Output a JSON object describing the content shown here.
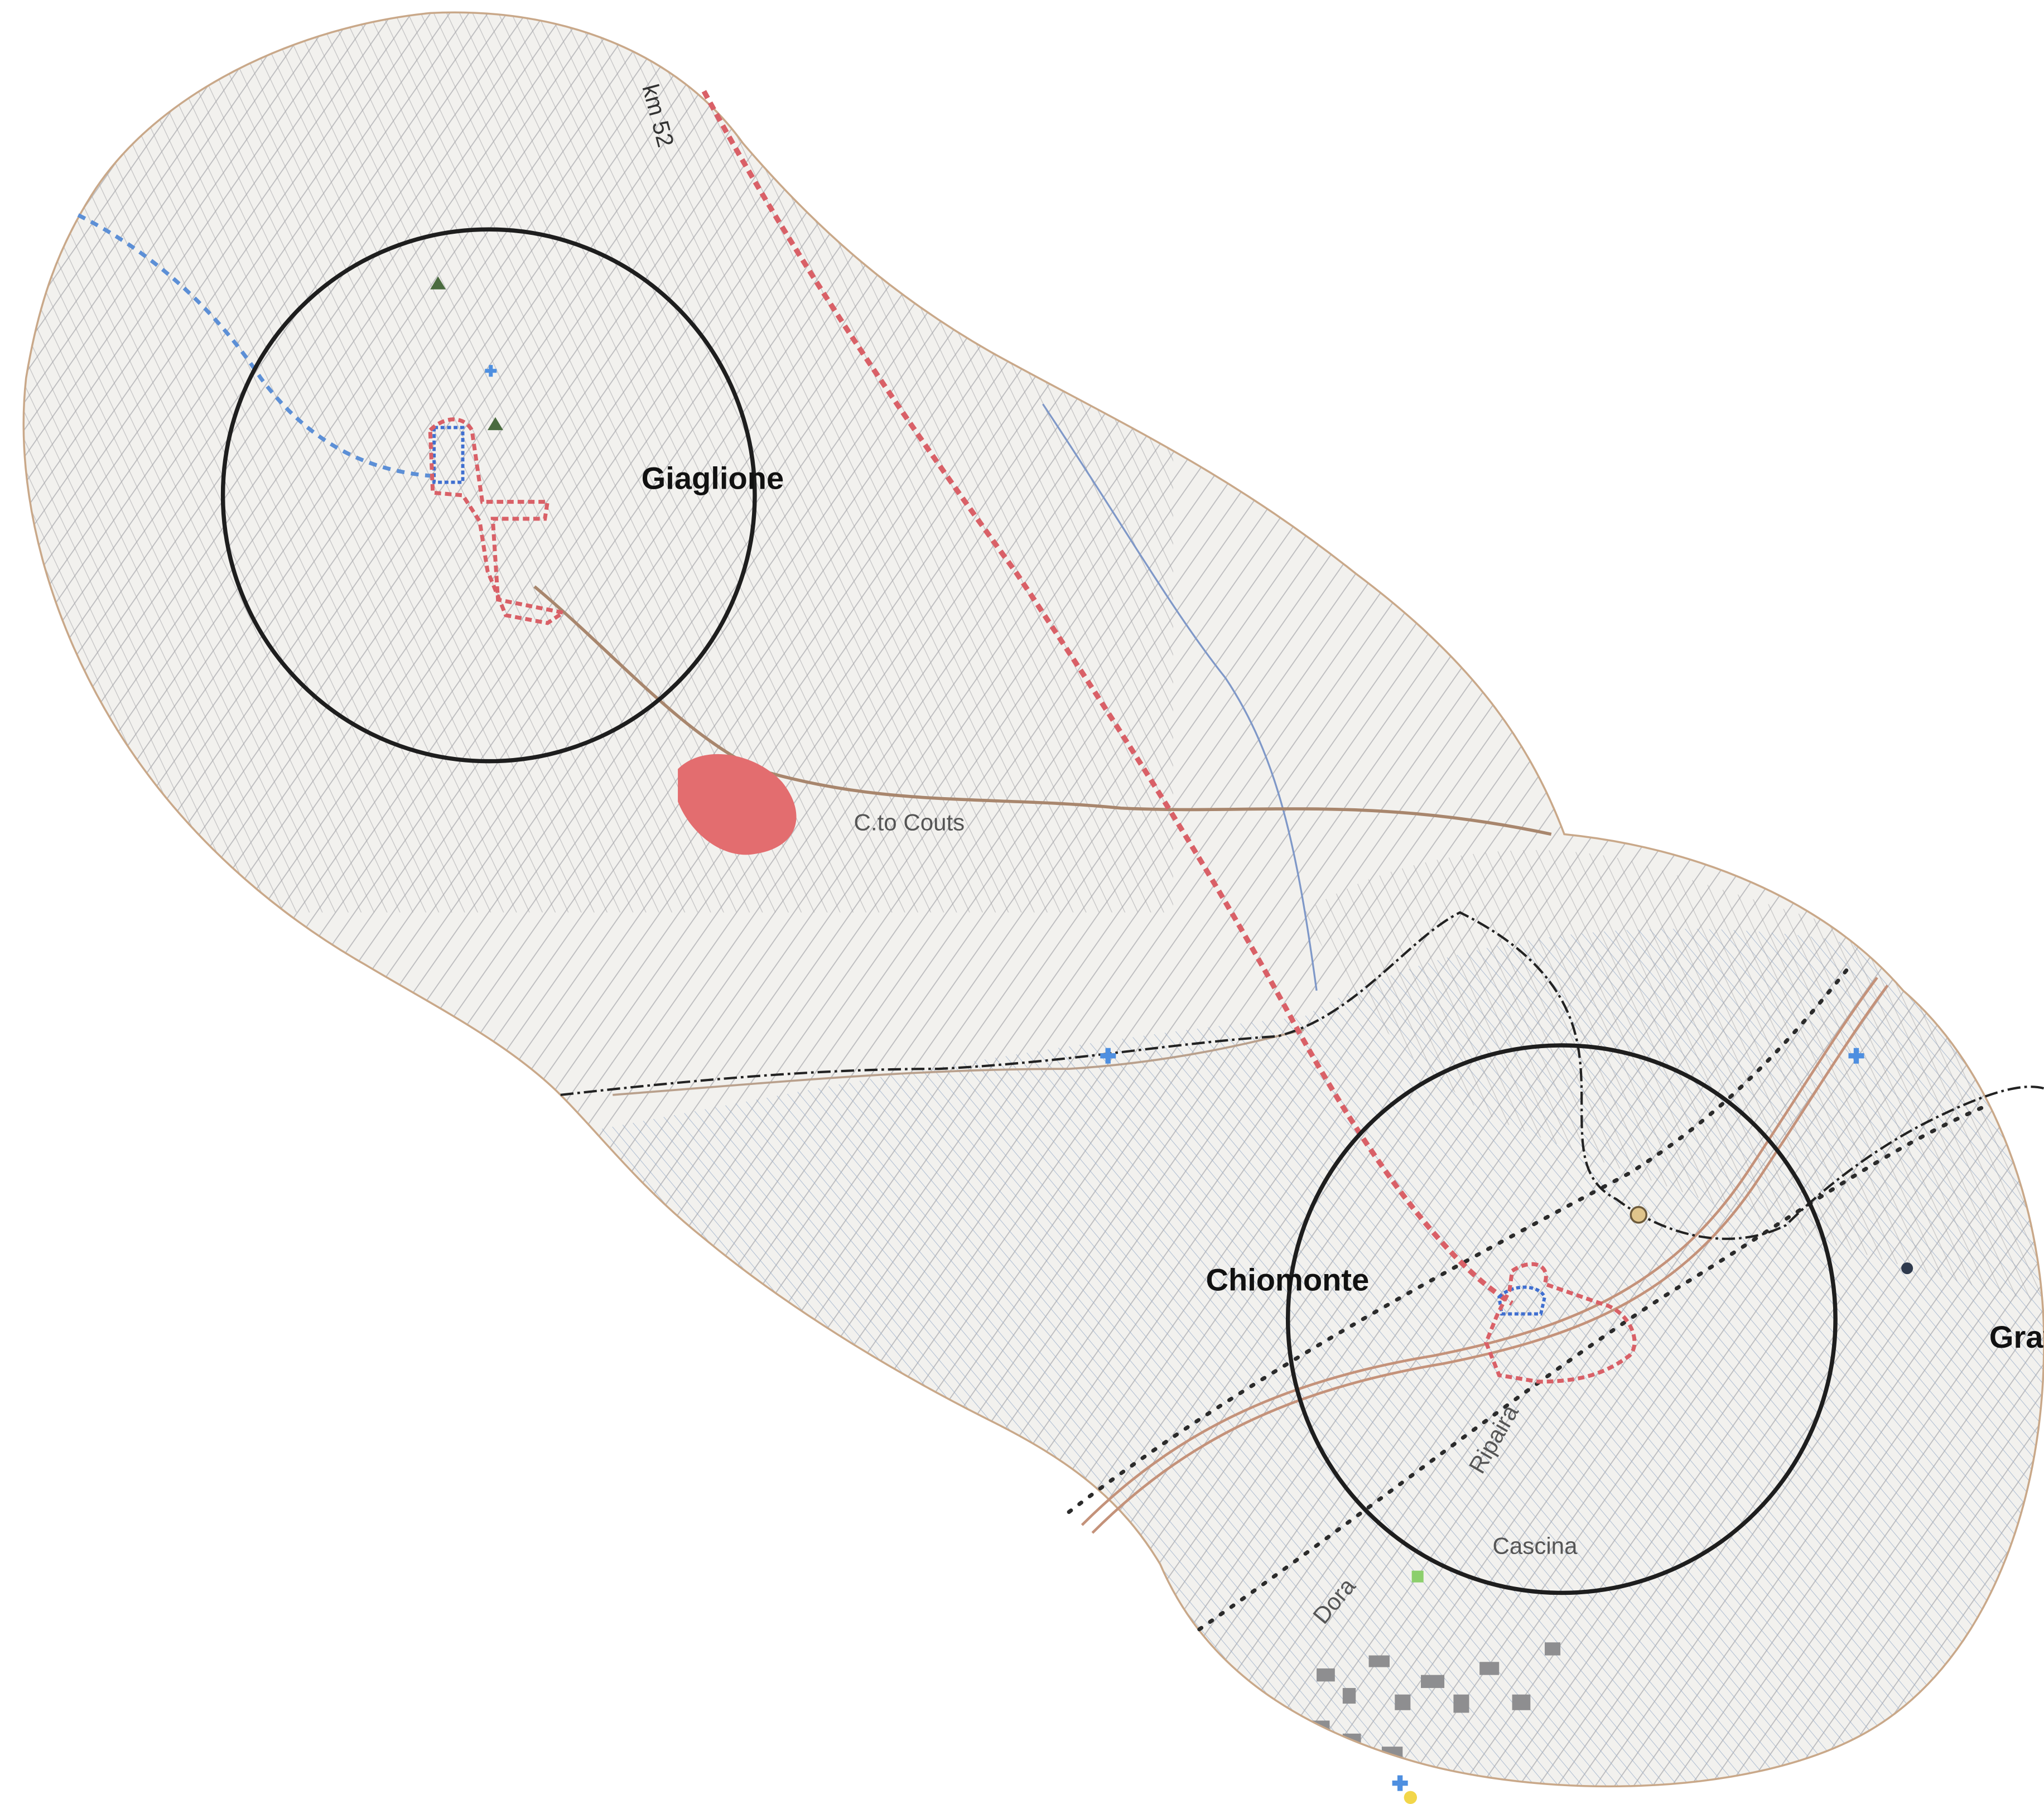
{
  "labels": {
    "giaglione": "Giaglione",
    "chiomonte": "Chiomonte",
    "gravere": "Gravere",
    "km": "km 52",
    "dora": "Dora",
    "ripaira": "Ripaira",
    "clot_copie": "C.to Couts",
    "cascina": "Cascina"
  },
  "colors": {
    "paper": "#ffffff",
    "terrain_fill": "#f2f1ee",
    "contour": "#a9a9ab",
    "boundary_outline": "#c9a889",
    "range_circle": "#1e1e1e",
    "red_dashed": "#d96067",
    "blue_dashed": "#5c8fd6",
    "red_area": "#e36d6f",
    "road_brown": "#a8866d",
    "river_blue": "#7f98c8",
    "rail_dotted": "#2b2b2b",
    "admin_boundary": "#222222",
    "hospital_cross": "#4e8fe0"
  },
  "icons": {
    "hospital": "blue-cross-icon",
    "power": "gold-circle-icon",
    "station": "dark-dot-icon",
    "green_marker": "green-square-icon",
    "yellow_marker": "yellow-marker-icon"
  }
}
